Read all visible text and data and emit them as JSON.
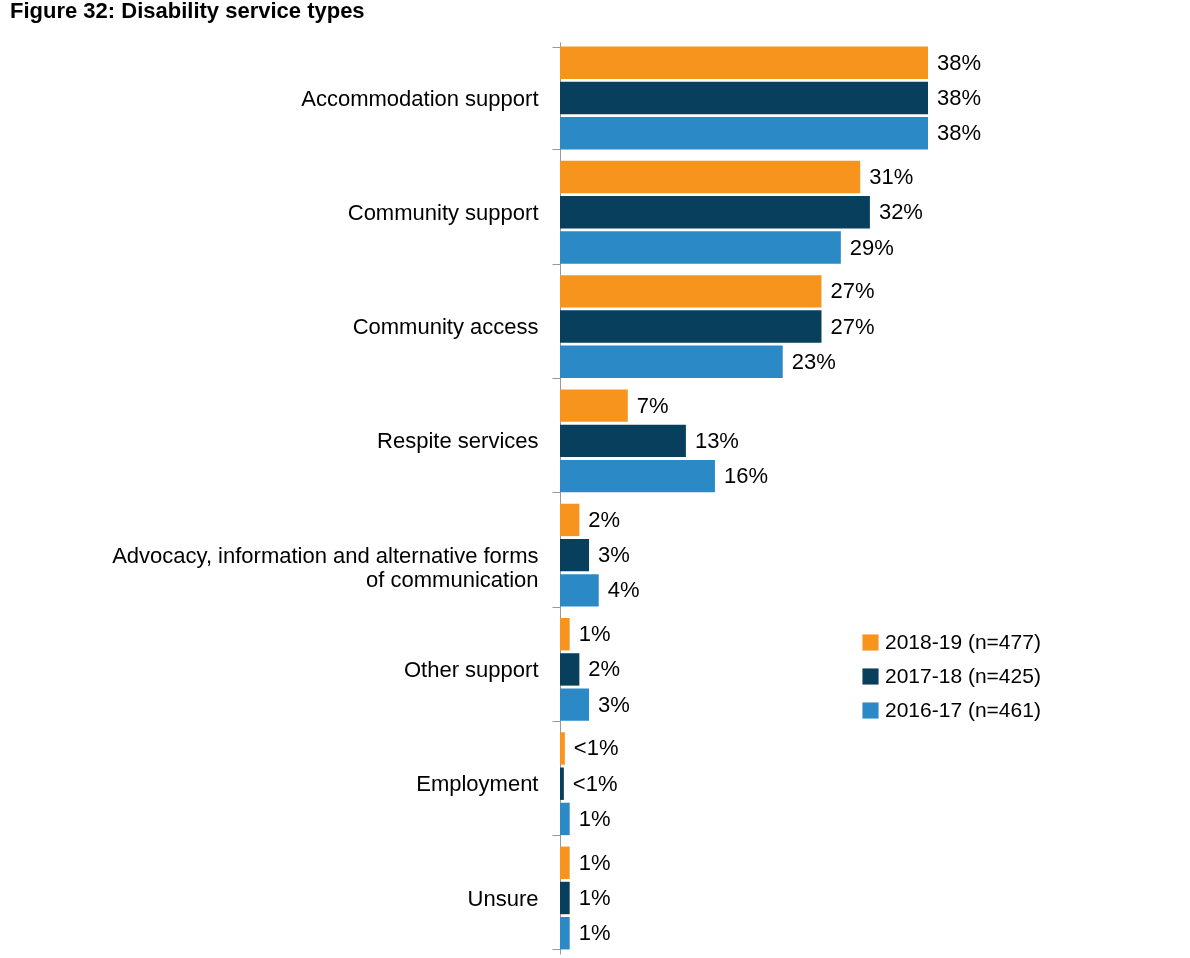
{
  "chart_data": {
    "type": "bar",
    "orientation": "horizontal",
    "title": "Figure 32: Disability service types",
    "categories": [
      "Accommodation support",
      "Community support",
      "Community access",
      "Respite services",
      "Advocacy, information and alternative forms of communication",
      "Other support",
      "Employment",
      "Unsure"
    ],
    "series": [
      {
        "name": "2018-19 (n=477)",
        "color": "#f7941d",
        "values": [
          38,
          31,
          27,
          7,
          2,
          1,
          0.5,
          1
        ],
        "value_labels": [
          "38%",
          "31%",
          "27%",
          "7%",
          "2%",
          "1%",
          "<1%",
          "1%"
        ]
      },
      {
        "name": "2017-18 (n=425)",
        "color": "#073f5c",
        "values": [
          38,
          32,
          27,
          13,
          3,
          2,
          0.4,
          1
        ],
        "value_labels": [
          "38%",
          "32%",
          "27%",
          "13%",
          "3%",
          "2%",
          "<1%",
          "1%"
        ]
      },
      {
        "name": "2016-17 (n=461)",
        "color": "#2b8ac6",
        "values": [
          38,
          29,
          23,
          16,
          4,
          3,
          1,
          1
        ],
        "value_labels": [
          "38%",
          "29%",
          "23%",
          "16%",
          "4%",
          "3%",
          "1%",
          "1%"
        ]
      }
    ],
    "legend": "right"
  }
}
